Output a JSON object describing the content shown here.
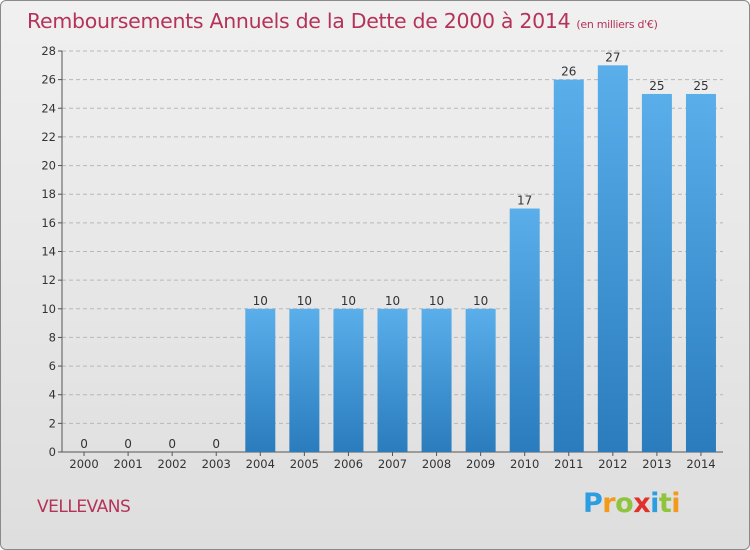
{
  "chart_data": {
    "type": "bar",
    "title": "Remboursements Annuels de la Dette de 2000 à 2014",
    "unit_label": "(en milliers d'€)",
    "categories": [
      "2000",
      "2001",
      "2002",
      "2003",
      "2004",
      "2005",
      "2006",
      "2007",
      "2008",
      "2009",
      "2010",
      "2011",
      "2012",
      "2013",
      "2014"
    ],
    "values": [
      0,
      0,
      0,
      0,
      10,
      10,
      10,
      10,
      10,
      10,
      17,
      26,
      27,
      25,
      25
    ],
    "xlabel": "",
    "ylabel": "",
    "ylim": [
      0,
      28
    ],
    "yticks": [
      0,
      2,
      4,
      6,
      8,
      10,
      12,
      14,
      16,
      18,
      20,
      22,
      24,
      26,
      28
    ],
    "grid": true,
    "legend": "none"
  },
  "footer": {
    "commune": "VELLEVANS",
    "logo_letters": [
      "P",
      "r",
      "o",
      "x",
      "i",
      "t",
      "i"
    ],
    "logo_colors": [
      "#2a9ee0",
      "#f39a1b",
      "#8fc43c",
      "#e2312c",
      "#2a9ee0",
      "#8fc43c",
      "#f39a1b"
    ]
  },
  "colors": {
    "title": "#b5325a",
    "bar_top": "#5aaeea",
    "bar_bottom": "#2a7cbd",
    "grid": "#b8b8b8",
    "axis_text": "#333333"
  }
}
